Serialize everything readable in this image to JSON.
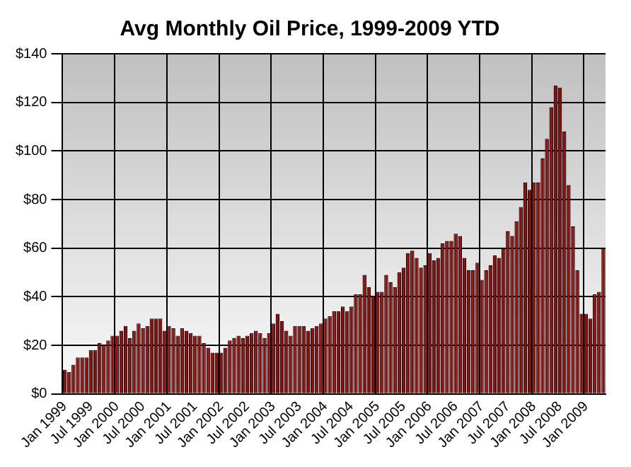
{
  "chart_data": {
    "type": "bar",
    "title": "Avg Monthly Oil Price, 1999-2009 YTD",
    "categories": [
      "Jan 1999",
      null,
      null,
      null,
      null,
      null,
      "Jul 1999",
      null,
      null,
      null,
      null,
      null,
      "Jan 2000",
      null,
      null,
      null,
      null,
      null,
      "Jul 2000",
      null,
      null,
      null,
      null,
      null,
      "Jan 2001",
      null,
      null,
      null,
      null,
      null,
      "Jul 2001",
      null,
      null,
      null,
      null,
      null,
      "Jan 2002",
      null,
      null,
      null,
      null,
      null,
      "Jul 2002",
      null,
      null,
      null,
      null,
      null,
      "Jan 2003",
      null,
      null,
      null,
      null,
      null,
      "Jul 2003",
      null,
      null,
      null,
      null,
      null,
      "Jan 2004",
      null,
      null,
      null,
      null,
      null,
      "Jul 2004",
      null,
      null,
      null,
      null,
      null,
      "Jan 2005",
      null,
      null,
      null,
      null,
      null,
      "Jul 2005",
      null,
      null,
      null,
      null,
      null,
      "Jan 2006",
      null,
      null,
      null,
      null,
      null,
      "Jul 2006",
      null,
      null,
      null,
      null,
      null,
      "Jan 2007",
      null,
      null,
      null,
      null,
      null,
      "Jul 2007",
      null,
      null,
      null,
      null,
      null,
      "Jan 2008",
      null,
      null,
      null,
      null,
      null,
      "Jul 2008",
      null,
      null,
      null,
      null,
      null,
      "Jan 2009",
      null,
      null,
      null,
      null
    ],
    "values": [
      10,
      9,
      12,
      15,
      15,
      15,
      18,
      18,
      21,
      20,
      22,
      24,
      24,
      26,
      28,
      23,
      26,
      29,
      27,
      28,
      31,
      31,
      31,
      26,
      28,
      27,
      24,
      27,
      26,
      25,
      24,
      24,
      21,
      19,
      17,
      17,
      17,
      19,
      22,
      23,
      24,
      23,
      24,
      25,
      26,
      25,
      23,
      25,
      29,
      33,
      30,
      26,
      24,
      28,
      28,
      28,
      26,
      27,
      28,
      29,
      31,
      32,
      34,
      34,
      36,
      34,
      36,
      41,
      41,
      49,
      44,
      40,
      42,
      42,
      49,
      46,
      44,
      50,
      52,
      58,
      59,
      56,
      52,
      53,
      58,
      55,
      56,
      62,
      63,
      63,
      66,
      65,
      56,
      51,
      51,
      54,
      47,
      51,
      53,
      57,
      56,
      60,
      67,
      65,
      71,
      77,
      87,
      84,
      87,
      87,
      97,
      105,
      118,
      127,
      126,
      108,
      86,
      69,
      51,
      33,
      33,
      31,
      41,
      42,
      60
    ],
    "color": "#8a0f0f",
    "ylim": [
      0,
      140
    ],
    "yticks": [
      {
        "value": 0,
        "label": "$0"
      },
      {
        "value": 20,
        "label": "$20"
      },
      {
        "value": 40,
        "label": "$40"
      },
      {
        "value": 60,
        "label": "$60"
      },
      {
        "value": 80,
        "label": "$80"
      },
      {
        "value": 100,
        "label": "$100"
      },
      {
        "value": 120,
        "label": "$120"
      },
      {
        "value": 140,
        "label": "$140"
      }
    ],
    "grid": true,
    "legend": false
  }
}
